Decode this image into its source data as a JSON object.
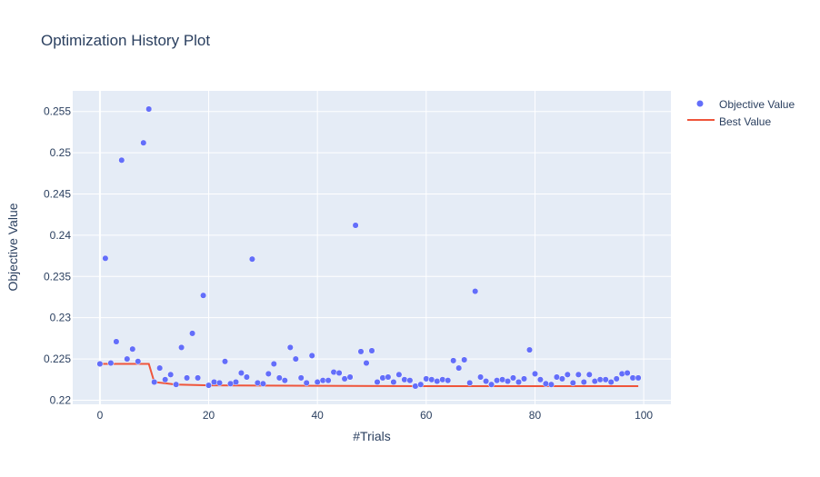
{
  "chart_data": {
    "type": "scatter",
    "title": "Optimization History Plot",
    "xlabel": "#Trials",
    "ylabel": "Objective Value",
    "xlim": [
      -5,
      105
    ],
    "ylim": [
      0.2195,
      0.2575
    ],
    "xticks": [
      0,
      20,
      40,
      60,
      80,
      100
    ],
    "yticks": [
      0.22,
      0.225,
      0.23,
      0.235,
      0.24,
      0.245,
      0.25,
      0.255
    ],
    "ytick_labels": [
      "0.22",
      "0.225",
      "0.23",
      "0.235",
      "0.24",
      "0.245",
      "0.25",
      "0.255"
    ],
    "grid": true,
    "legend_position": "top-right",
    "series": [
      {
        "name": "Objective Value",
        "mode": "markers",
        "color": "#636efa",
        "x": [
          0,
          1,
          2,
          3,
          4,
          5,
          6,
          7,
          8,
          9,
          10,
          11,
          12,
          13,
          14,
          15,
          16,
          17,
          18,
          19,
          20,
          21,
          22,
          23,
          24,
          25,
          26,
          27,
          28,
          29,
          30,
          31,
          32,
          33,
          34,
          35,
          36,
          37,
          38,
          39,
          40,
          41,
          42,
          43,
          44,
          45,
          46,
          47,
          48,
          49,
          50,
          51,
          52,
          53,
          54,
          55,
          56,
          57,
          58,
          59,
          60,
          61,
          62,
          63,
          64,
          65,
          66,
          67,
          68,
          69,
          70,
          71,
          72,
          73,
          74,
          75,
          76,
          77,
          78,
          79,
          80,
          81,
          82,
          83,
          84,
          85,
          86,
          87,
          88,
          89,
          90,
          91,
          92,
          93,
          94,
          95,
          96,
          97,
          98,
          99
        ],
        "y": [
          0.2244,
          0.2372,
          0.2245,
          0.2271,
          0.2491,
          0.225,
          0.2262,
          0.2247,
          0.2512,
          0.2553,
          0.2222,
          0.2239,
          0.2225,
          0.2231,
          0.2219,
          0.2264,
          0.2227,
          0.2281,
          0.2227,
          0.2327,
          0.2218,
          0.2222,
          0.2221,
          0.2247,
          0.222,
          0.2222,
          0.2233,
          0.2228,
          0.2371,
          0.2221,
          0.222,
          0.2232,
          0.2244,
          0.2227,
          0.2224,
          0.2264,
          0.225,
          0.2227,
          0.2221,
          0.2254,
          0.2222,
          0.2224,
          0.2224,
          0.2234,
          0.2233,
          0.2226,
          0.2228,
          0.2412,
          0.2259,
          0.2245,
          0.226,
          0.2222,
          0.2227,
          0.2228,
          0.2222,
          0.2231,
          0.2225,
          0.2224,
          0.2217,
          0.2219,
          0.2226,
          0.2225,
          0.2223,
          0.2225,
          0.2224,
          0.2248,
          0.2239,
          0.2249,
          0.2221,
          0.2332,
          0.2228,
          0.2223,
          0.2219,
          0.2224,
          0.2225,
          0.2223,
          0.2227,
          0.2222,
          0.2226,
          0.2261,
          0.2232,
          0.2225,
          0.222,
          0.2219,
          0.2228,
          0.2226,
          0.2231,
          0.2221,
          0.2231,
          0.2222,
          0.2231,
          0.2223,
          0.2225,
          0.2225,
          0.2222,
          0.2226,
          0.2232,
          0.2233,
          0.2227,
          0.2227
        ]
      },
      {
        "name": "Best Value",
        "mode": "lines",
        "color": "#ef553b",
        "x": [
          0,
          9,
          10,
          14,
          20,
          58,
          99
        ],
        "y": [
          0.2244,
          0.2244,
          0.2222,
          0.2219,
          0.2218,
          0.2217,
          0.2217
        ]
      }
    ]
  }
}
